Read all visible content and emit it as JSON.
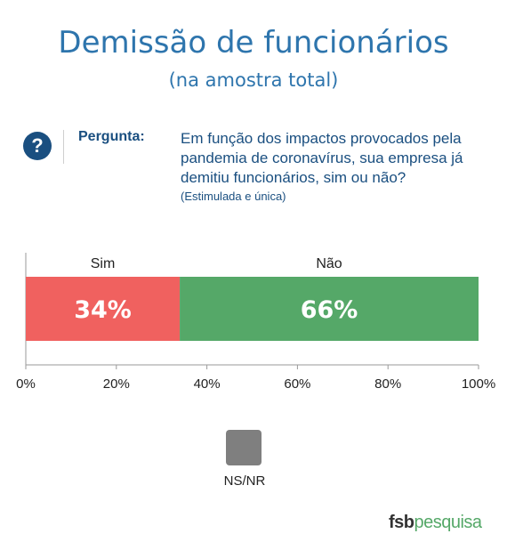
{
  "header": {
    "title": "Demissão de funcionários",
    "subtitle": "(na amostra total)"
  },
  "question": {
    "icon": "question-icon",
    "label": "Pergunta:",
    "text": "Em função dos impactos provocados pela pandemia de coronavírus, sua empresa já demitiu funcionários, sim ou não?",
    "note": "(Estimulada e única)"
  },
  "chart_data": {
    "type": "bar",
    "orientation": "horizontal-stacked",
    "xlim": [
      0,
      100
    ],
    "ticks": [
      "0%",
      "20%",
      "40%",
      "60%",
      "80%",
      "100%"
    ],
    "segments": [
      {
        "name": "Sim",
        "value": 34,
        "label": "34%",
        "color": "#f0615f"
      },
      {
        "name": "Não",
        "value": 66,
        "label": "66%",
        "color": "#55a868"
      }
    ],
    "legend": [
      {
        "name": "NS/NR",
        "color": "#7f7f7f"
      }
    ],
    "legend_placement": "bottom"
  },
  "brand": {
    "part1": "fsb",
    "part2": "pesquisa"
  }
}
